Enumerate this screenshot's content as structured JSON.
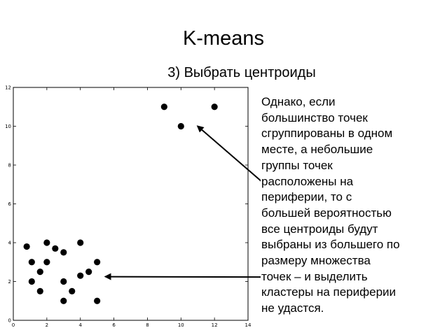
{
  "slide": {
    "title": "K-means",
    "subtitle": "3) Выбрать центроиды",
    "note_lines": [
      "Однако, если",
      "большинство точек",
      "сгруппированы в одном",
      "месте, а небольшие",
      "группы точек",
      "расположены на",
      "периферии, то с",
      "большей вероятностью",
      "все центроиды будут",
      "выбраны из большего по",
      "размеру множества",
      "точек – и выделить",
      "кластеры на периферии",
      "не удастся."
    ]
  },
  "chart_data": {
    "type": "scatter",
    "xlim": [
      0,
      14
    ],
    "ylim": [
      0,
      12
    ],
    "x_ticks": [
      "0",
      "2",
      "4",
      "6",
      "8",
      "10",
      "12",
      "14"
    ],
    "y_ticks": [
      "0",
      "2",
      "4",
      "6",
      "8",
      "10",
      "12"
    ],
    "grid": false,
    "marker_color": "#000000",
    "points": [
      {
        "x": 0.8,
        "y": 3.8
      },
      {
        "x": 1.1,
        "y": 3.0
      },
      {
        "x": 1.1,
        "y": 2.0
      },
      {
        "x": 1.6,
        "y": 2.5
      },
      {
        "x": 1.6,
        "y": 1.5
      },
      {
        "x": 2.0,
        "y": 4.0
      },
      {
        "x": 2.0,
        "y": 3.0
      },
      {
        "x": 2.5,
        "y": 3.7
      },
      {
        "x": 3.0,
        "y": 3.5
      },
      {
        "x": 3.0,
        "y": 2.0
      },
      {
        "x": 3.0,
        "y": 1.0
      },
      {
        "x": 3.5,
        "y": 1.5
      },
      {
        "x": 4.0,
        "y": 4.0
      },
      {
        "x": 4.0,
        "y": 2.3
      },
      {
        "x": 4.5,
        "y": 2.5
      },
      {
        "x": 5.0,
        "y": 3.0
      },
      {
        "x": 5.0,
        "y": 1.0
      },
      {
        "x": 9.0,
        "y": 11.0
      },
      {
        "x": 10.0,
        "y": 10.0
      },
      {
        "x": 12.0,
        "y": 11.0
      }
    ],
    "arrows": [
      {
        "from_note_line": 5,
        "to": {
          "x": 11.0,
          "y": 10.0
        }
      },
      {
        "from_note_line": 11,
        "to": {
          "x": 5.5,
          "y": 2.25
        }
      }
    ]
  }
}
